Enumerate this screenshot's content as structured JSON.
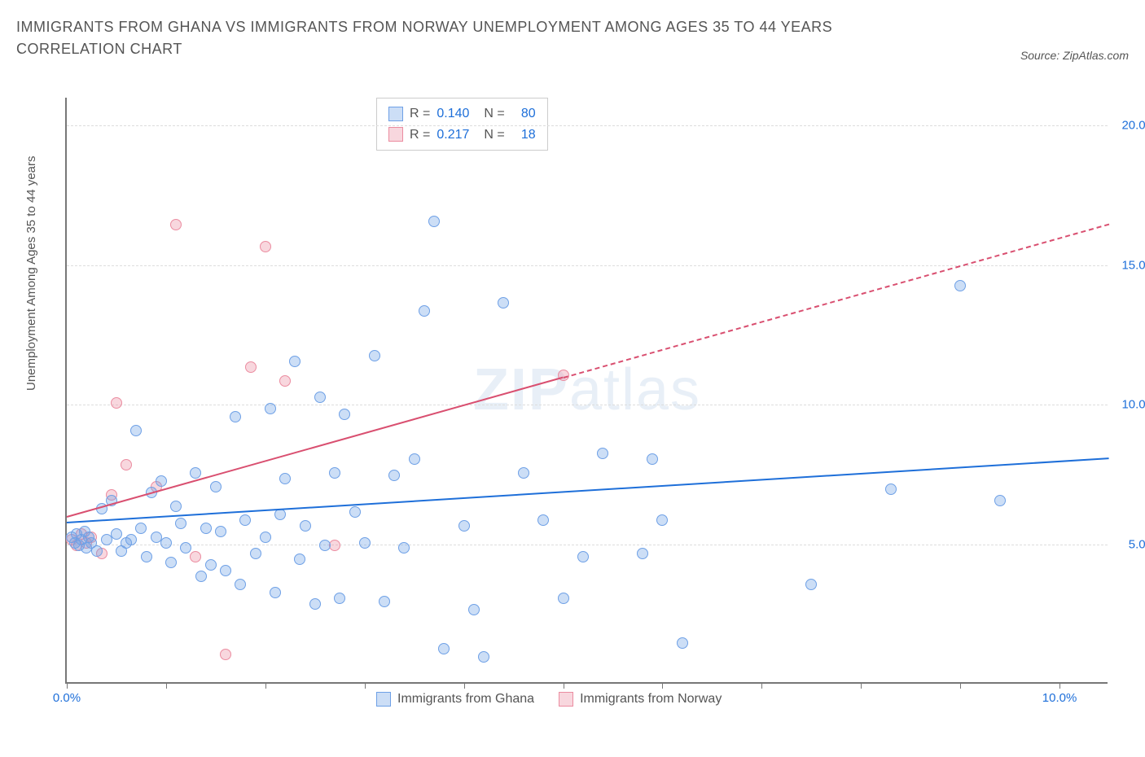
{
  "title": "IMMIGRANTS FROM GHANA VS IMMIGRANTS FROM NORWAY UNEMPLOYMENT AMONG AGES 35 TO 44 YEARS CORRELATION CHART",
  "source": "Source: ZipAtlas.com",
  "y_axis_label": "Unemployment Among Ages 35 to 44 years",
  "watermark_a": "ZIP",
  "watermark_b": "atlas",
  "colors": {
    "series_a_fill": "rgba(110,160,230,0.35)",
    "series_a_stroke": "#6ea0e6",
    "series_b_fill": "rgba(235,140,160,0.35)",
    "series_b_stroke": "#eb8ca0",
    "trend_a": "#1e6fd9",
    "trend_b": "#d94f70",
    "axis_text_a": "#1e6fd9",
    "axis_text_b": "#1e6fd9",
    "title_color": "#555555"
  },
  "legend_top": {
    "rows": [
      {
        "swatch_fill": "rgba(110,160,230,0.35)",
        "swatch_border": "#6ea0e6",
        "r_label": "R =",
        "r_value": "0.140",
        "n_label": "N =",
        "n_value": "80"
      },
      {
        "swatch_fill": "rgba(235,140,160,0.35)",
        "swatch_border": "#eb8ca0",
        "r_label": "R =",
        "r_value": "0.217",
        "n_label": "N =",
        "n_value": "18"
      }
    ]
  },
  "legend_bottom": [
    {
      "swatch_fill": "rgba(110,160,230,0.35)",
      "swatch_border": "#6ea0e6",
      "label": "Immigrants from Ghana"
    },
    {
      "swatch_fill": "rgba(235,140,160,0.35)",
      "swatch_border": "#eb8ca0",
      "label": "Immigrants from Norway"
    }
  ],
  "axes": {
    "xlim": [
      0,
      10.5
    ],
    "ylim": [
      0,
      21
    ],
    "y_ticks": [
      {
        "value": 5,
        "label": "5.0%"
      },
      {
        "value": 10,
        "label": "10.0%"
      },
      {
        "value": 15,
        "label": "15.0%"
      },
      {
        "value": 20,
        "label": "20.0%"
      }
    ],
    "x_ticks": [
      {
        "value": 0,
        "label": "0.0%"
      },
      {
        "value": 1,
        "label": ""
      },
      {
        "value": 2,
        "label": ""
      },
      {
        "value": 3,
        "label": ""
      },
      {
        "value": 4,
        "label": ""
      },
      {
        "value": 5,
        "label": ""
      },
      {
        "value": 6,
        "label": ""
      },
      {
        "value": 7,
        "label": ""
      },
      {
        "value": 8,
        "label": ""
      },
      {
        "value": 9,
        "label": ""
      },
      {
        "value": 10,
        "label": "10.0%"
      }
    ],
    "x_label_color": "#1e6fd9",
    "y_label_color": "#1e6fd9"
  },
  "series_a": {
    "name": "Immigrants from Ghana",
    "points": [
      [
        0.05,
        5.2
      ],
      [
        0.08,
        5.0
      ],
      [
        0.1,
        5.3
      ],
      [
        0.12,
        4.9
      ],
      [
        0.15,
        5.1
      ],
      [
        0.18,
        5.4
      ],
      [
        0.2,
        4.8
      ],
      [
        0.22,
        5.2
      ],
      [
        0.25,
        5.0
      ],
      [
        0.3,
        4.7
      ],
      [
        0.35,
        6.2
      ],
      [
        0.4,
        5.1
      ],
      [
        0.45,
        6.5
      ],
      [
        0.5,
        5.3
      ],
      [
        0.55,
        4.7
      ],
      [
        0.6,
        5.0
      ],
      [
        0.65,
        5.1
      ],
      [
        0.7,
        9.0
      ],
      [
        0.75,
        5.5
      ],
      [
        0.8,
        4.5
      ],
      [
        0.85,
        6.8
      ],
      [
        0.9,
        5.2
      ],
      [
        0.95,
        7.2
      ],
      [
        1.0,
        5.0
      ],
      [
        1.05,
        4.3
      ],
      [
        1.1,
        6.3
      ],
      [
        1.15,
        5.7
      ],
      [
        1.2,
        4.8
      ],
      [
        1.3,
        7.5
      ],
      [
        1.35,
        3.8
      ],
      [
        1.4,
        5.5
      ],
      [
        1.45,
        4.2
      ],
      [
        1.5,
        7.0
      ],
      [
        1.55,
        5.4
      ],
      [
        1.6,
        4.0
      ],
      [
        1.7,
        9.5
      ],
      [
        1.75,
        3.5
      ],
      [
        1.8,
        5.8
      ],
      [
        1.9,
        4.6
      ],
      [
        2.0,
        5.2
      ],
      [
        2.05,
        9.8
      ],
      [
        2.1,
        3.2
      ],
      [
        2.15,
        6.0
      ],
      [
        2.2,
        7.3
      ],
      [
        2.3,
        11.5
      ],
      [
        2.35,
        4.4
      ],
      [
        2.4,
        5.6
      ],
      [
        2.5,
        2.8
      ],
      [
        2.55,
        10.2
      ],
      [
        2.6,
        4.9
      ],
      [
        2.7,
        7.5
      ],
      [
        2.75,
        3.0
      ],
      [
        2.8,
        9.6
      ],
      [
        2.9,
        6.1
      ],
      [
        3.0,
        5.0
      ],
      [
        3.1,
        11.7
      ],
      [
        3.2,
        2.9
      ],
      [
        3.3,
        7.4
      ],
      [
        3.4,
        4.8
      ],
      [
        3.5,
        8.0
      ],
      [
        3.6,
        13.3
      ],
      [
        3.7,
        16.5
      ],
      [
        3.8,
        1.2
      ],
      [
        4.0,
        5.6
      ],
      [
        4.1,
        2.6
      ],
      [
        4.2,
        0.9
      ],
      [
        4.4,
        13.6
      ],
      [
        4.6,
        7.5
      ],
      [
        4.8,
        5.8
      ],
      [
        5.0,
        3.0
      ],
      [
        5.2,
        4.5
      ],
      [
        5.4,
        8.2
      ],
      [
        5.8,
        4.6
      ],
      [
        5.9,
        8.0
      ],
      [
        6.0,
        5.8
      ],
      [
        6.2,
        1.4
      ],
      [
        7.5,
        3.5
      ],
      [
        8.3,
        6.9
      ],
      [
        9.0,
        14.2
      ],
      [
        9.4,
        6.5
      ]
    ],
    "trend": {
      "x1": 0,
      "y1": 5.8,
      "x2": 10.5,
      "y2": 8.1,
      "dashed": false
    }
  },
  "series_b": {
    "name": "Immigrants from Norway",
    "points": [
      [
        0.05,
        5.1
      ],
      [
        0.1,
        4.9
      ],
      [
        0.15,
        5.3
      ],
      [
        0.2,
        5.0
      ],
      [
        0.25,
        5.2
      ],
      [
        0.35,
        4.6
      ],
      [
        0.45,
        6.7
      ],
      [
        0.5,
        10.0
      ],
      [
        0.6,
        7.8
      ],
      [
        0.9,
        7.0
      ],
      [
        1.1,
        16.4
      ],
      [
        1.3,
        4.5
      ],
      [
        1.6,
        1.0
      ],
      [
        1.85,
        11.3
      ],
      [
        2.0,
        15.6
      ],
      [
        2.2,
        10.8
      ],
      [
        2.7,
        4.9
      ],
      [
        5.0,
        11.0
      ]
    ],
    "trend_solid": {
      "x1": 0,
      "y1": 6.0,
      "x2": 5.0,
      "y2": 11.0,
      "dashed": false
    },
    "trend_dashed": {
      "x1": 5.0,
      "y1": 11.0,
      "x2": 10.5,
      "y2": 16.5,
      "dashed": true
    }
  }
}
